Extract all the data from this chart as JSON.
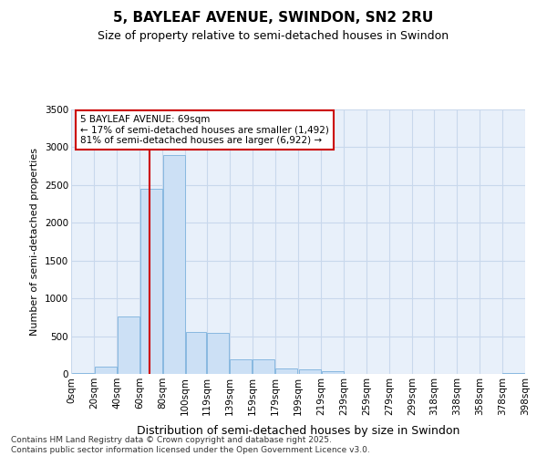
{
  "title1": "5, BAYLEAF AVENUE, SWINDON, SN2 2RU",
  "title2": "Size of property relative to semi-detached houses in Swindon",
  "xlabel": "Distribution of semi-detached houses by size in Swindon",
  "ylabel": "Number of semi-detached properties",
  "annotation_title": "5 BAYLEAF AVENUE: 69sqm",
  "annotation_line1": "← 17% of semi-detached houses are smaller (1,492)",
  "annotation_line2": "81% of semi-detached houses are larger (6,922) →",
  "footer1": "Contains HM Land Registry data © Crown copyright and database right 2025.",
  "footer2": "Contains public sector information licensed under the Open Government Licence v3.0.",
  "property_size": 69,
  "bins": [
    0,
    20,
    40,
    60,
    80,
    100,
    119,
    139,
    159,
    179,
    199,
    219,
    239,
    259,
    279,
    299,
    318,
    338,
    358,
    378,
    398
  ],
  "counts": [
    15,
    95,
    760,
    2450,
    2900,
    560,
    540,
    195,
    195,
    75,
    55,
    40,
    5,
    0,
    0,
    0,
    0,
    0,
    0,
    15
  ],
  "bar_facecolor": "#cce0f5",
  "bar_edgecolor": "#88b8e0",
  "redline_color": "#cc0000",
  "annotation_box_edgecolor": "#cc0000",
  "grid_color": "#c8d8ec",
  "bg_color": "#e8f0fa",
  "ylim": [
    0,
    3500
  ],
  "yticks": [
    0,
    500,
    1000,
    1500,
    2000,
    2500,
    3000,
    3500
  ],
  "title1_fontsize": 11,
  "title2_fontsize": 9,
  "tick_fontsize": 7.5,
  "ylabel_fontsize": 8,
  "xlabel_fontsize": 9,
  "ann_fontsize": 7.5,
  "footer_fontsize": 6.5
}
